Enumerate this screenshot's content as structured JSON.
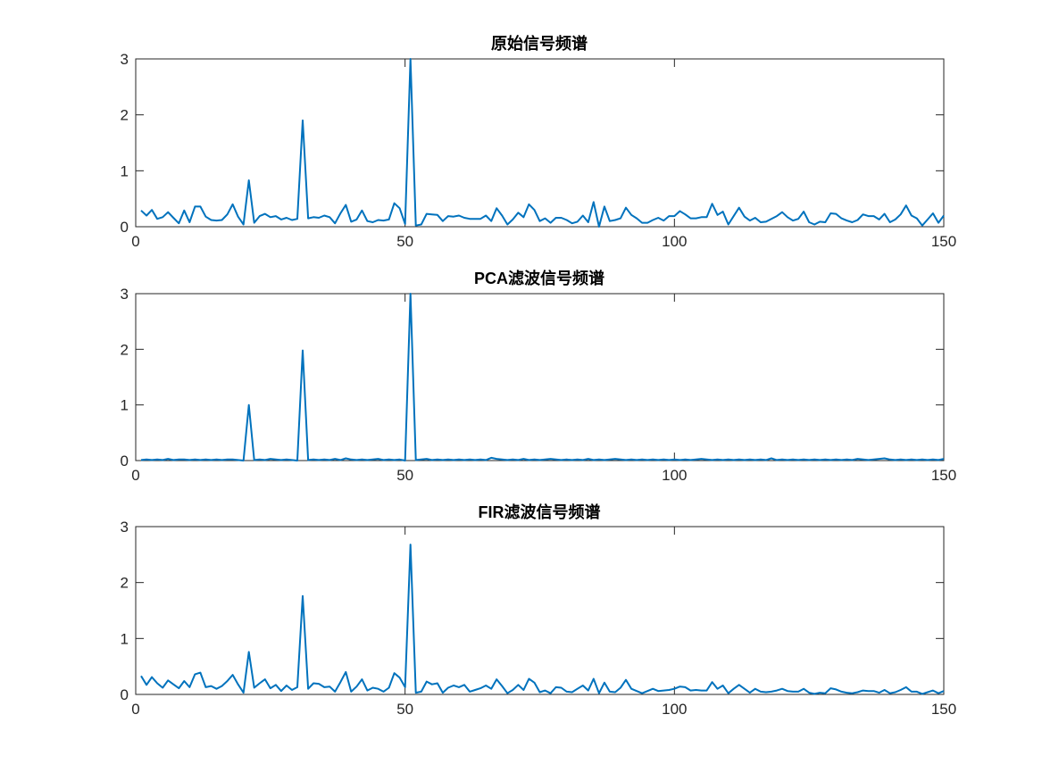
{
  "chart_data": [
    {
      "type": "line",
      "title": "原始信号频谱",
      "xlim": [
        0,
        150
      ],
      "ylim": [
        0,
        3
      ],
      "xticks": [
        0,
        50,
        100,
        150
      ],
      "yticks": [
        0,
        1,
        2,
        3
      ],
      "grid": false,
      "color": "#0072BD",
      "x_start": 1,
      "values": [
        0.29,
        0.2,
        0.3,
        0.14,
        0.17,
        0.26,
        0.16,
        0.06,
        0.29,
        0.08,
        0.36,
        0.36,
        0.18,
        0.12,
        0.11,
        0.12,
        0.22,
        0.4,
        0.18,
        0.04,
        0.83,
        0.07,
        0.19,
        0.23,
        0.17,
        0.19,
        0.13,
        0.16,
        0.12,
        0.14,
        1.9,
        0.15,
        0.17,
        0.16,
        0.2,
        0.17,
        0.06,
        0.24,
        0.39,
        0.09,
        0.13,
        0.29,
        0.1,
        0.08,
        0.12,
        0.11,
        0.13,
        0.42,
        0.33,
        0.05,
        3.0,
        0.02,
        0.04,
        0.23,
        0.22,
        0.21,
        0.1,
        0.19,
        0.18,
        0.2,
        0.16,
        0.14,
        0.14,
        0.14,
        0.2,
        0.1,
        0.33,
        0.2,
        0.04,
        0.13,
        0.25,
        0.17,
        0.4,
        0.3,
        0.1,
        0.15,
        0.07,
        0.16,
        0.16,
        0.12,
        0.06,
        0.09,
        0.2,
        0.08,
        0.44,
        0.0,
        0.36,
        0.1,
        0.12,
        0.15,
        0.34,
        0.21,
        0.15,
        0.07,
        0.07,
        0.12,
        0.16,
        0.11,
        0.19,
        0.19,
        0.28,
        0.22,
        0.15,
        0.15,
        0.17,
        0.17,
        0.41,
        0.21,
        0.27,
        0.04,
        0.19,
        0.34,
        0.18,
        0.11,
        0.16,
        0.08,
        0.09,
        0.14,
        0.19,
        0.26,
        0.17,
        0.11,
        0.14,
        0.27,
        0.08,
        0.04,
        0.09,
        0.08,
        0.24,
        0.23,
        0.15,
        0.11,
        0.08,
        0.12,
        0.22,
        0.19,
        0.19,
        0.13,
        0.23,
        0.08,
        0.13,
        0.22,
        0.38,
        0.2,
        0.15,
        0.02,
        0.13,
        0.24,
        0.07,
        0.2
      ]
    },
    {
      "type": "line",
      "title": "PCA滤波信号频谱",
      "xlim": [
        0,
        150
      ],
      "ylim": [
        0,
        3
      ],
      "xticks": [
        0,
        50,
        100,
        150
      ],
      "yticks": [
        0,
        1,
        2,
        3
      ],
      "grid": false,
      "color": "#0072BD",
      "x_start": 1,
      "values": [
        0.01,
        0.02,
        0.01,
        0.02,
        0.01,
        0.03,
        0.01,
        0.02,
        0.02,
        0.01,
        0.02,
        0.01,
        0.02,
        0.01,
        0.02,
        0.01,
        0.02,
        0.02,
        0.01,
        0.0,
        1.0,
        0.01,
        0.02,
        0.01,
        0.03,
        0.02,
        0.01,
        0.02,
        0.01,
        0.0,
        1.98,
        0.01,
        0.02,
        0.01,
        0.02,
        0.01,
        0.03,
        0.01,
        0.04,
        0.02,
        0.01,
        0.02,
        0.01,
        0.02,
        0.03,
        0.01,
        0.02,
        0.01,
        0.02,
        0.0,
        3.0,
        0.01,
        0.02,
        0.03,
        0.01,
        0.02,
        0.01,
        0.02,
        0.01,
        0.02,
        0.01,
        0.02,
        0.01,
        0.02,
        0.01,
        0.05,
        0.03,
        0.02,
        0.01,
        0.02,
        0.01,
        0.03,
        0.01,
        0.02,
        0.01,
        0.02,
        0.03,
        0.02,
        0.01,
        0.02,
        0.01,
        0.02,
        0.01,
        0.03,
        0.01,
        0.02,
        0.01,
        0.02,
        0.03,
        0.02,
        0.01,
        0.02,
        0.01,
        0.02,
        0.01,
        0.02,
        0.01,
        0.02,
        0.01,
        0.02,
        0.01,
        0.02,
        0.01,
        0.02,
        0.03,
        0.02,
        0.01,
        0.02,
        0.01,
        0.02,
        0.01,
        0.02,
        0.01,
        0.02,
        0.01,
        0.02,
        0.01,
        0.04,
        0.01,
        0.02,
        0.01,
        0.02,
        0.01,
        0.02,
        0.01,
        0.02,
        0.01,
        0.02,
        0.01,
        0.02,
        0.01,
        0.02,
        0.01,
        0.03,
        0.02,
        0.01,
        0.02,
        0.03,
        0.04,
        0.02,
        0.01,
        0.02,
        0.01,
        0.02,
        0.01,
        0.02,
        0.01,
        0.02,
        0.01,
        0.03
      ]
    },
    {
      "type": "line",
      "title": "FIR滤波信号频谱",
      "xlim": [
        0,
        150
      ],
      "ylim": [
        0,
        3
      ],
      "xticks": [
        0,
        50,
        100,
        150
      ],
      "yticks": [
        0,
        1,
        2,
        3
      ],
      "grid": false,
      "color": "#0072BD",
      "x_start": 1,
      "values": [
        0.33,
        0.17,
        0.31,
        0.2,
        0.12,
        0.25,
        0.18,
        0.11,
        0.24,
        0.13,
        0.36,
        0.39,
        0.13,
        0.15,
        0.1,
        0.15,
        0.24,
        0.35,
        0.18,
        0.03,
        0.76,
        0.12,
        0.2,
        0.27,
        0.11,
        0.17,
        0.06,
        0.16,
        0.08,
        0.13,
        1.76,
        0.1,
        0.2,
        0.19,
        0.13,
        0.14,
        0.05,
        0.22,
        0.4,
        0.05,
        0.14,
        0.27,
        0.07,
        0.12,
        0.1,
        0.05,
        0.12,
        0.38,
        0.3,
        0.13,
        2.68,
        0.03,
        0.05,
        0.23,
        0.18,
        0.2,
        0.03,
        0.12,
        0.16,
        0.13,
        0.17,
        0.05,
        0.08,
        0.11,
        0.16,
        0.1,
        0.27,
        0.15,
        0.02,
        0.08,
        0.17,
        0.08,
        0.28,
        0.21,
        0.04,
        0.07,
        0.02,
        0.13,
        0.12,
        0.05,
        0.04,
        0.1,
        0.16,
        0.07,
        0.28,
        0.02,
        0.21,
        0.05,
        0.04,
        0.12,
        0.26,
        0.1,
        0.06,
        0.02,
        0.06,
        0.1,
        0.06,
        0.07,
        0.08,
        0.1,
        0.14,
        0.13,
        0.07,
        0.08,
        0.07,
        0.07,
        0.22,
        0.1,
        0.16,
        0.02,
        0.1,
        0.17,
        0.1,
        0.03,
        0.1,
        0.05,
        0.04,
        0.05,
        0.07,
        0.1,
        0.06,
        0.05,
        0.05,
        0.1,
        0.03,
        0.01,
        0.03,
        0.02,
        0.11,
        0.09,
        0.05,
        0.03,
        0.02,
        0.04,
        0.07,
        0.06,
        0.06,
        0.03,
        0.08,
        0.02,
        0.04,
        0.08,
        0.13,
        0.05,
        0.05,
        0.01,
        0.04,
        0.07,
        0.02,
        0.06
      ]
    }
  ]
}
